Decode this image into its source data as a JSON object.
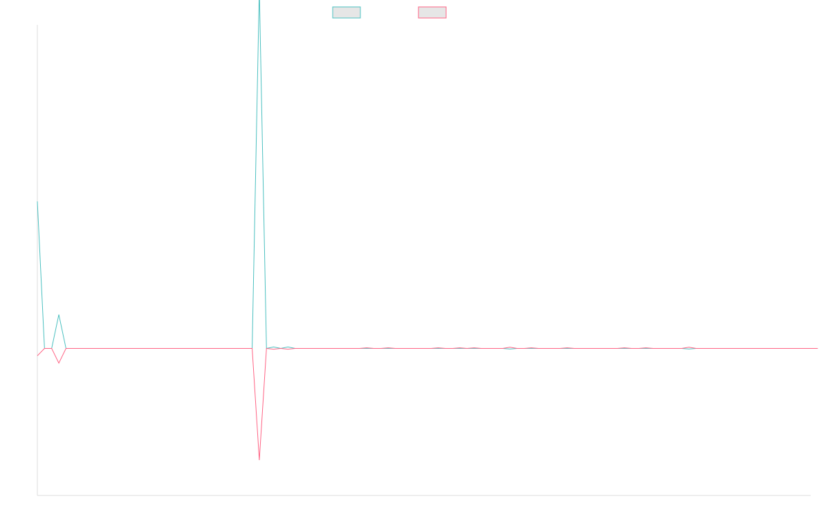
{
  "chart_data": {
    "type": "line",
    "title": "",
    "xlabel": "",
    "ylabel": "",
    "grid": false,
    "legend": {
      "position": "top-center",
      "entries": [
        "",
        ""
      ]
    },
    "colors": {
      "series_a": "#4bc0c0",
      "series_b": "#ff6384",
      "legend_fill": "#e6e6e6",
      "axis": "#dddddd"
    },
    "ylim": [
      -1,
      2.2
    ],
    "x_count": 109,
    "series": [
      {
        "key": "series_a",
        "color": "#4bc0c0",
        "values": [
          1.0,
          0,
          0,
          0.23,
          0,
          0,
          0,
          0,
          0,
          0,
          0,
          0,
          0,
          0,
          0,
          0,
          0,
          0,
          0,
          0,
          0,
          0,
          0,
          0,
          0,
          0,
          0,
          0,
          0,
          0,
          0,
          2.45,
          0,
          0.01,
          0,
          0.01,
          0,
          0,
          0,
          0,
          0,
          0,
          0,
          0,
          0,
          0,
          0,
          0,
          0,
          0,
          0,
          0,
          0,
          0,
          0,
          0,
          0,
          0,
          0,
          0,
          0,
          0,
          0,
          0,
          0,
          0,
          0,
          0,
          0,
          0,
          0,
          0,
          0,
          0,
          0,
          0,
          0,
          0,
          0,
          0,
          0,
          0,
          0,
          0,
          0,
          0,
          0,
          0,
          0,
          0,
          0,
          0,
          0,
          0,
          0,
          0,
          0,
          0,
          0,
          0,
          0,
          0,
          0,
          0,
          0,
          0,
          0,
          0,
          0
        ]
      },
      {
        "key": "series_b",
        "color": "#ff6384",
        "values": [
          -0.05,
          0,
          0,
          -0.1,
          0,
          0,
          0,
          0,
          0,
          0,
          0,
          0,
          0,
          0,
          0,
          0,
          0,
          0,
          0,
          0,
          0,
          0,
          0,
          0,
          0,
          0,
          0,
          0,
          0,
          0,
          0,
          -0.76,
          0,
          -0.005,
          0,
          0,
          0,
          0,
          0,
          0,
          0,
          0,
          0,
          0,
          0,
          0,
          0,
          0,
          0,
          0,
          0,
          0,
          0,
          0,
          0,
          0,
          0,
          0,
          0,
          0,
          0,
          0,
          0,
          0,
          0,
          0,
          0,
          0,
          0,
          0,
          0,
          0,
          0,
          0,
          0,
          0,
          0,
          0,
          0,
          0,
          0,
          0,
          0,
          0,
          0,
          0,
          0,
          0,
          0,
          0,
          0,
          0,
          0,
          0,
          0,
          0,
          0,
          0,
          0,
          0,
          0,
          0,
          0,
          0,
          0,
          0,
          0,
          0,
          0,
          0
        ]
      }
    ],
    "small_wiggles": [
      {
        "x": 35,
        "a": 0.01,
        "b": -0.005
      },
      {
        "x": 46,
        "a": 0,
        "b": 0.004
      },
      {
        "x": 49,
        "a": 0,
        "b": 0.004
      },
      {
        "x": 56,
        "a": 0,
        "b": 0.004
      },
      {
        "x": 59,
        "a": 0,
        "b": 0.004
      },
      {
        "x": 61,
        "a": 0,
        "b": 0.004
      },
      {
        "x": 66,
        "a": -0.004,
        "b": 0.008
      },
      {
        "x": 69,
        "a": 0,
        "b": 0.004
      },
      {
        "x": 74,
        "a": 0,
        "b": 0.004
      },
      {
        "x": 82,
        "a": 0,
        "b": 0.004
      },
      {
        "x": 85,
        "a": 0,
        "b": 0.004
      },
      {
        "x": 91,
        "a": -0.004,
        "b": 0.008
      }
    ]
  }
}
